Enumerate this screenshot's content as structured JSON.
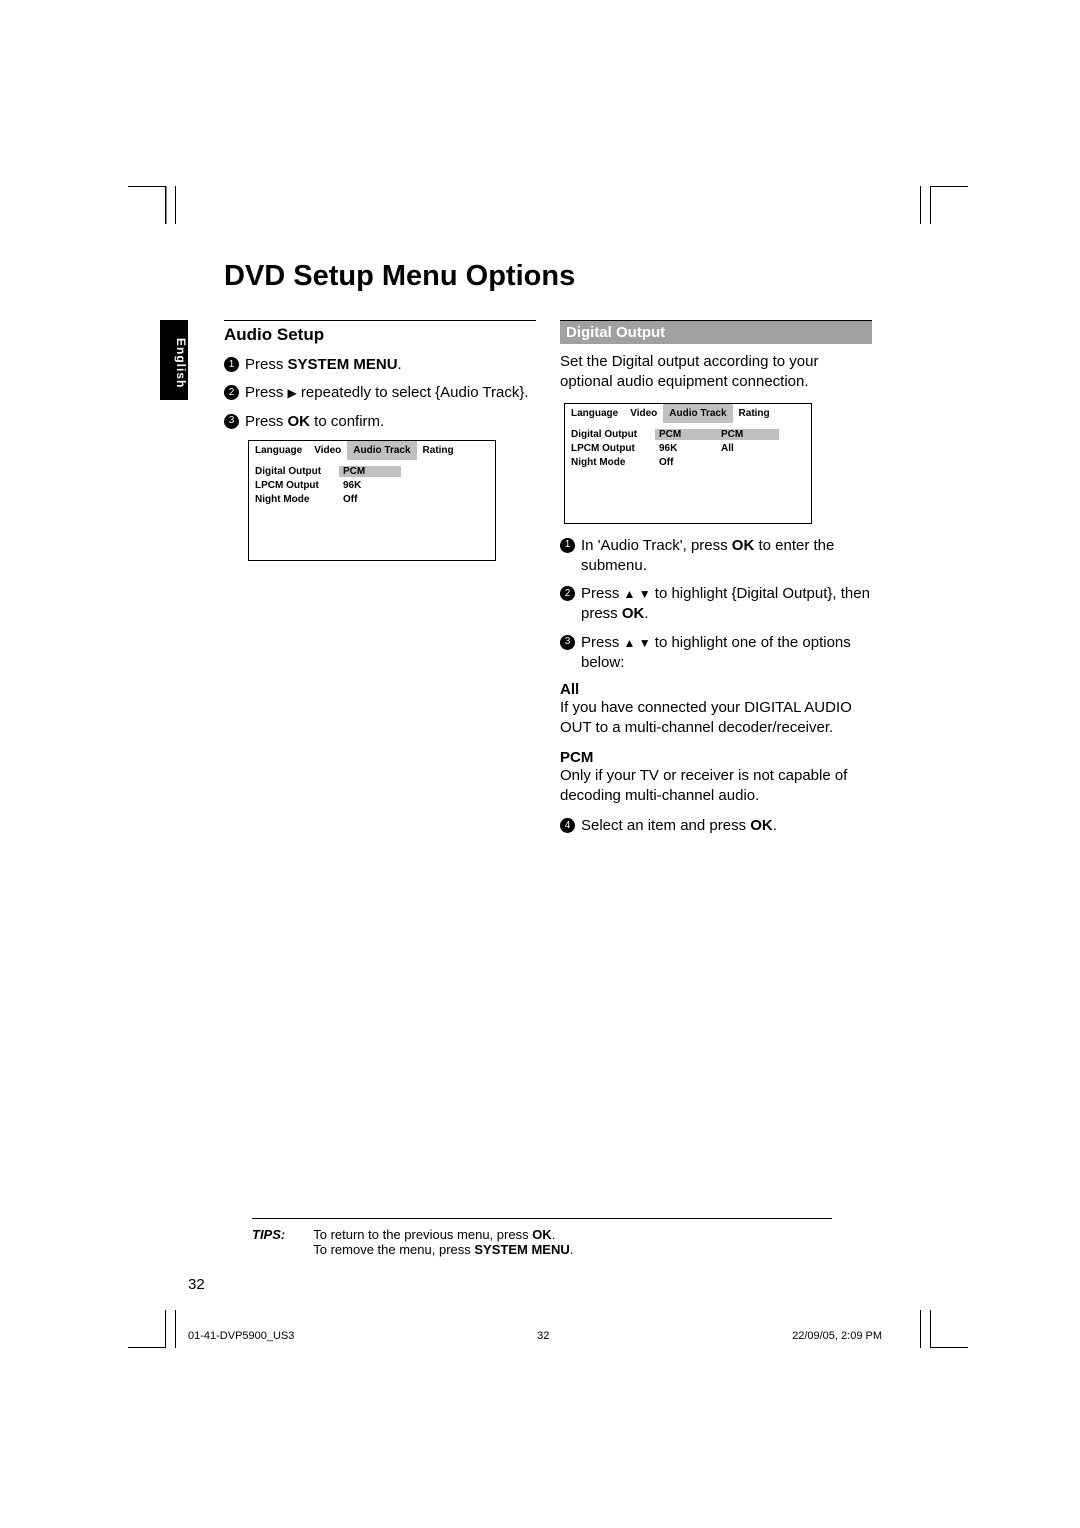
{
  "page_title": "DVD Setup Menu Options",
  "language_tab": "English",
  "page_number": "32",
  "left": {
    "section_head": "Audio Setup",
    "steps": [
      {
        "n": "1",
        "html": "Press <b>SYSTEM MENU</b>."
      },
      {
        "n": "2",
        "html": "Press <span class='tri'>▶</span> repeatedly to select {Audio Track}."
      },
      {
        "n": "3",
        "html": "Press <b>OK</b> to confirm."
      }
    ],
    "menu": {
      "tabs": [
        "Language",
        "Video",
        "Audio Track",
        "Rating"
      ],
      "active_tab": 2,
      "rows": [
        {
          "label": "Digital Output",
          "value": "PCM",
          "value_hl": true
        },
        {
          "label": "LPCM Output",
          "value": "96K"
        },
        {
          "label": "Night Mode",
          "value": "Off"
        }
      ]
    }
  },
  "right": {
    "banner": "Digital Output",
    "intro": "Set the Digital output according to your optional audio equipment connection.",
    "menu": {
      "tabs": [
        "Language",
        "Video",
        "Audio Track",
        "Rating"
      ],
      "active_tab": 2,
      "rows": [
        {
          "label": "Digital Output",
          "value": "PCM",
          "value_hl": true,
          "extra": "PCM",
          "extra_hl": true
        },
        {
          "label": "LPCM Output",
          "value": "96K",
          "extra": "All"
        },
        {
          "label": "Night Mode",
          "value": "Off"
        }
      ]
    },
    "steps_a": [
      {
        "n": "1",
        "html": "In 'Audio Track', press <b>OK</b> to enter the submenu."
      },
      {
        "n": "2",
        "html": "Press <span class='tri'>▲ ▼</span> to highlight {Digital Output}, then press <b>OK</b>."
      },
      {
        "n": "3",
        "html": "Press <span class='tri'>▲ ▼</span> to highlight one of the options below:"
      }
    ],
    "opt_all_label": "All",
    "opt_all_body": "If you have connected your DIGITAL AUDIO OUT to a multi-channel decoder/receiver.",
    "opt_pcm_label": "PCM",
    "opt_pcm_body": "Only if your TV or receiver is not capable of decoding multi-channel audio.",
    "steps_b": [
      {
        "n": "4",
        "html": "Select an item and press <b>OK</b>."
      }
    ]
  },
  "tips": {
    "label": "TIPS:",
    "line1": "To return to the previous menu, press <b>OK</b>.",
    "line2": "To remove the menu, press <b>SYSTEM MENU</b>."
  },
  "footer": {
    "file": "01-41-DVP5900_US3",
    "page": "32",
    "date": "22/09/05, 2:09 PM"
  }
}
